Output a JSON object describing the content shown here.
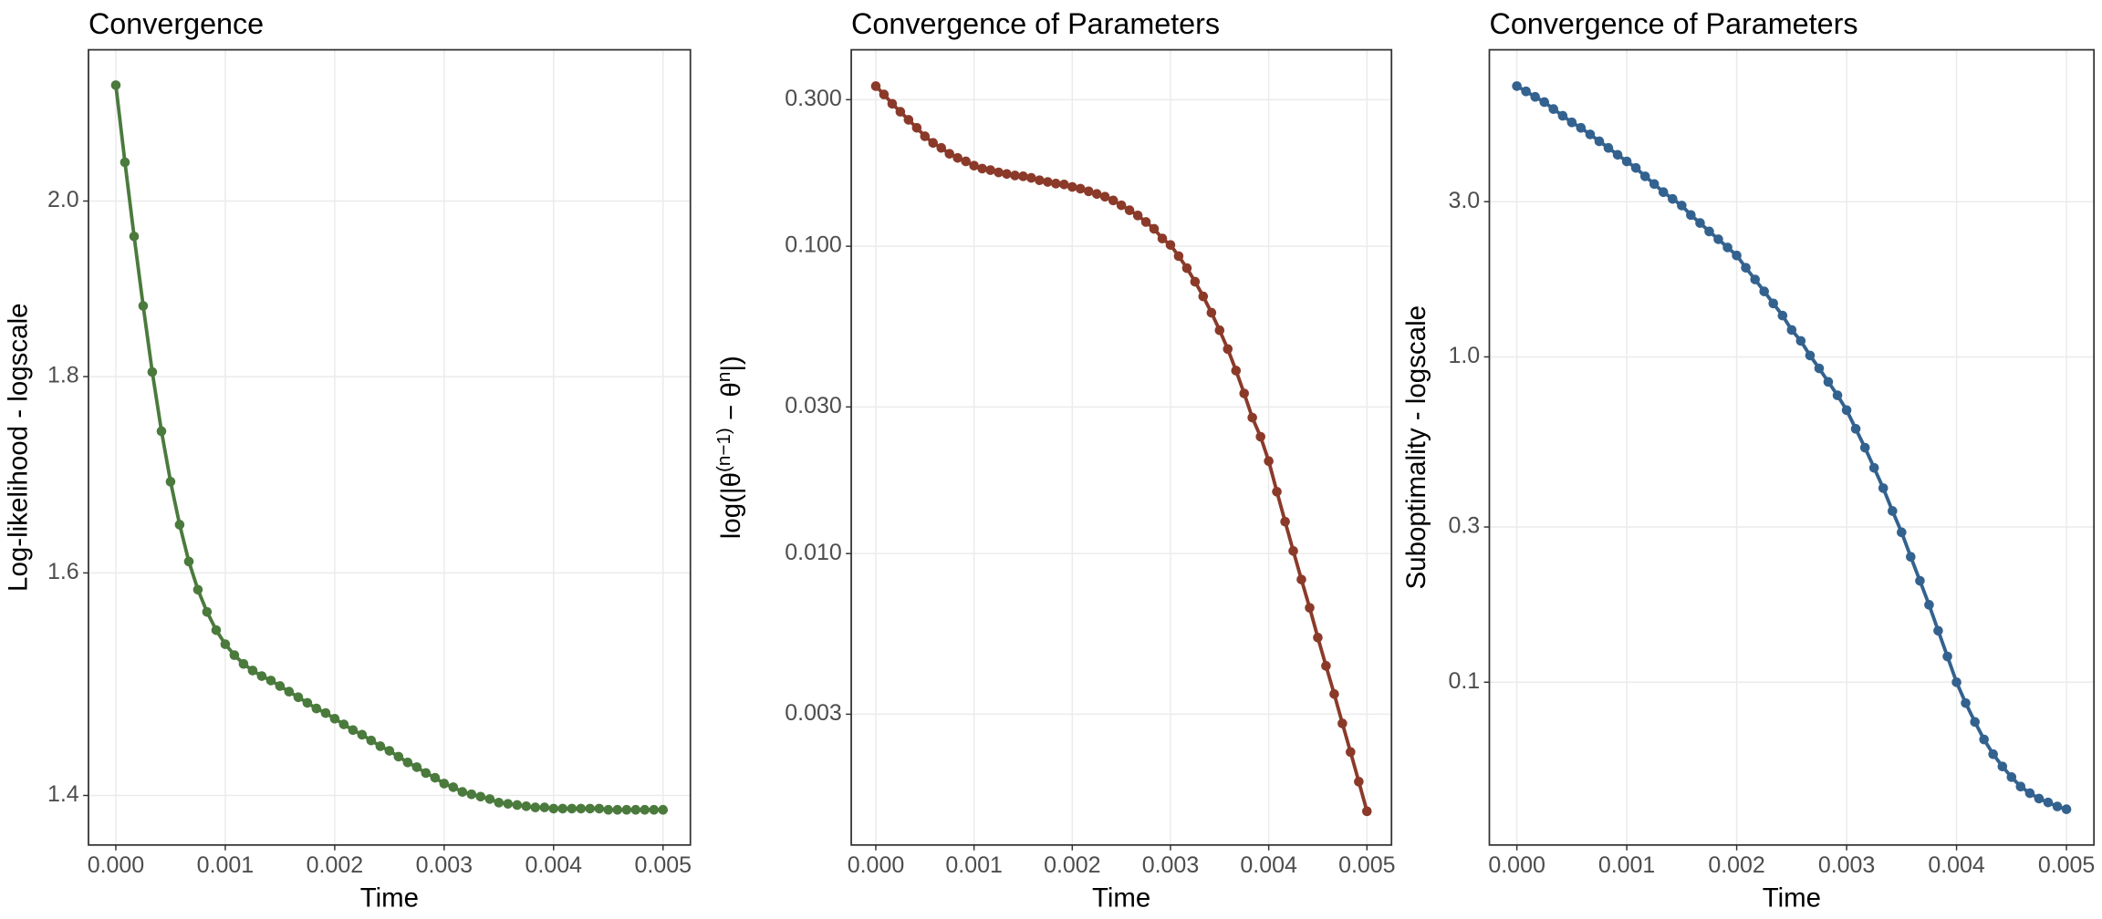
{
  "chart_data": [
    {
      "type": "line",
      "title": "Convergence",
      "xlabel": "Time",
      "ylabel": "Log-likelihood - logscale",
      "color": "#4b7a3d",
      "log_y": true,
      "grid": true,
      "x": [
        0,
        8.33e-05,
        0.000167,
        0.00025,
        0.000333,
        0.000417,
        0.0005,
        0.000583,
        0.000667,
        0.00075,
        0.000833,
        0.000917,
        0.001,
        0.001083,
        0.001167,
        0.00125,
        0.001333,
        0.001417,
        0.0015,
        0.001583,
        0.001667,
        0.00175,
        0.001833,
        0.001917,
        0.002,
        0.002083,
        0.002167,
        0.00225,
        0.002333,
        0.002417,
        0.0025,
        0.002583,
        0.002667,
        0.00275,
        0.002833,
        0.002917,
        0.003,
        0.003083,
        0.003167,
        0.00325,
        0.003333,
        0.003417,
        0.0035,
        0.003583,
        0.003667,
        0.00375,
        0.003833,
        0.003917,
        0.004,
        0.004083,
        0.004167,
        0.00425,
        0.004333,
        0.004417,
        0.0045,
        0.004583,
        0.004667,
        0.00475,
        0.004833,
        0.004917,
        0.005
      ],
      "values": [
        2.144,
        2.047,
        1.958,
        1.878,
        1.805,
        1.742,
        1.69,
        1.647,
        1.611,
        1.584,
        1.563,
        1.546,
        1.533,
        1.523,
        1.515,
        1.509,
        1.504,
        1.5,
        1.495,
        1.49,
        1.485,
        1.48,
        1.475,
        1.471,
        1.466,
        1.461,
        1.456,
        1.452,
        1.447,
        1.442,
        1.438,
        1.433,
        1.428,
        1.424,
        1.419,
        1.415,
        1.41,
        1.407,
        1.403,
        1.401,
        1.399,
        1.397,
        1.394,
        1.393,
        1.392,
        1.391,
        1.39,
        1.39,
        1.389,
        1.389,
        1.389,
        1.389,
        1.389,
        1.389,
        1.388,
        1.388,
        1.388,
        1.388,
        1.388,
        1.388,
        1.388
      ],
      "xlim": [
        -0.00025,
        0.00525
      ],
      "ylim": [
        1.359,
        2.19
      ],
      "xticks": [
        {
          "value": 0,
          "label": "0.000"
        },
        {
          "value": 0.001,
          "label": "0.001"
        },
        {
          "value": 0.002,
          "label": "0.002"
        },
        {
          "value": 0.003,
          "label": "0.003"
        },
        {
          "value": 0.004,
          "label": "0.004"
        },
        {
          "value": 0.005,
          "label": "0.005"
        }
      ],
      "yticks": [
        1.4,
        1.6,
        1.8,
        {
          "value": 2,
          "label": "2.0"
        }
      ]
    },
    {
      "type": "line",
      "title": "Convergence of Parameters",
      "xlabel": "Time",
      "ylabel": [
        "log(|θ",
        "(n−1)",
        " − θ",
        "n",
        "|)"
      ],
      "ylabel_superscript": [
        false,
        true,
        false,
        true,
        false
      ],
      "color": "#8b3a2a",
      "log_y": true,
      "grid": true,
      "x": [
        0,
        8.33e-05,
        0.000167,
        0.00025,
        0.000333,
        0.000417,
        0.0005,
        0.000583,
        0.000667,
        0.00075,
        0.000833,
        0.000917,
        0.001,
        0.001083,
        0.001167,
        0.00125,
        0.001333,
        0.001417,
        0.0015,
        0.001583,
        0.001667,
        0.00175,
        0.001833,
        0.001917,
        0.002,
        0.002083,
        0.002167,
        0.00225,
        0.002333,
        0.002417,
        0.0025,
        0.002583,
        0.002667,
        0.00275,
        0.002833,
        0.002917,
        0.003,
        0.003083,
        0.003167,
        0.00325,
        0.003333,
        0.003417,
        0.0035,
        0.003583,
        0.003667,
        0.00375,
        0.003833,
        0.003917,
        0.004,
        0.004083,
        0.004167,
        0.00425,
        0.004333,
        0.004417,
        0.0045,
        0.004583,
        0.004667,
        0.00475,
        0.004833,
        0.004917,
        0.005
      ],
      "values": [
        0.332,
        0.312,
        0.291,
        0.274,
        0.258,
        0.243,
        0.228,
        0.217,
        0.209,
        0.2,
        0.194,
        0.189,
        0.183,
        0.179,
        0.177,
        0.174,
        0.172,
        0.17,
        0.169,
        0.167,
        0.164,
        0.162,
        0.16,
        0.159,
        0.156,
        0.154,
        0.151,
        0.148,
        0.145,
        0.141,
        0.136,
        0.131,
        0.126,
        0.12,
        0.114,
        0.106,
        0.101,
        0.0929,
        0.0849,
        0.0767,
        0.0687,
        0.0608,
        0.0533,
        0.0463,
        0.0394,
        0.0332,
        0.0277,
        0.024,
        0.02,
        0.0159,
        0.0127,
        0.0102,
        0.00823,
        0.00666,
        0.00533,
        0.00431,
        0.00349,
        0.0028,
        0.00226,
        0.00181,
        0.00145
      ],
      "xlim": [
        -0.00025,
        0.00525
      ],
      "ylim": [
        0.001126,
        0.436
      ],
      "xticks": [
        {
          "value": 0,
          "label": "0.000"
        },
        {
          "value": 0.001,
          "label": "0.001"
        },
        {
          "value": 0.002,
          "label": "0.002"
        },
        {
          "value": 0.003,
          "label": "0.003"
        },
        {
          "value": 0.004,
          "label": "0.004"
        },
        {
          "value": 0.005,
          "label": "0.005"
        }
      ],
      "yticks": [
        {
          "value": 0.003,
          "label": "0.003"
        },
        {
          "value": 0.01,
          "label": "0.010"
        },
        {
          "value": 0.03,
          "label": "0.030"
        },
        {
          "value": 0.1,
          "label": "0.100"
        },
        {
          "value": 0.3,
          "label": "0.300"
        }
      ]
    },
    {
      "type": "line",
      "title": "Convergence of Parameters",
      "xlabel": "Time",
      "ylabel": "Suboptimality - logscale",
      "color": "#33628f",
      "log_y": true,
      "grid": true,
      "x": [
        0,
        8.33e-05,
        0.000167,
        0.00025,
        0.000333,
        0.000417,
        0.0005,
        0.000583,
        0.000667,
        0.00075,
        0.000833,
        0.000917,
        0.001,
        0.001083,
        0.001167,
        0.00125,
        0.001333,
        0.001417,
        0.0015,
        0.001583,
        0.001667,
        0.00175,
        0.001833,
        0.001917,
        0.002,
        0.002083,
        0.002167,
        0.00225,
        0.002333,
        0.002417,
        0.0025,
        0.002583,
        0.002667,
        0.00275,
        0.002833,
        0.002917,
        0.003,
        0.003083,
        0.003167,
        0.00325,
        0.003333,
        0.003417,
        0.0035,
        0.003583,
        0.003667,
        0.00375,
        0.003833,
        0.003917,
        0.004,
        0.004083,
        0.004167,
        0.00425,
        0.004333,
        0.004417,
        0.0045,
        0.004583,
        0.004667,
        0.00475,
        0.004833,
        0.004917,
        0.005
      ],
      "values": [
        6.8,
        6.55,
        6.3,
        6.07,
        5.78,
        5.51,
        5.26,
        5.06,
        4.83,
        4.6,
        4.39,
        4.18,
        3.99,
        3.81,
        3.59,
        3.4,
        3.21,
        3.06,
        2.92,
        2.73,
        2.58,
        2.43,
        2.3,
        2.17,
        2.05,
        1.88,
        1.73,
        1.59,
        1.46,
        1.34,
        1.21,
        1.12,
        1.01,
        0.922,
        0.838,
        0.762,
        0.686,
        0.601,
        0.526,
        0.456,
        0.395,
        0.336,
        0.289,
        0.243,
        0.205,
        0.173,
        0.144,
        0.12,
        0.1,
        0.0863,
        0.0755,
        0.0667,
        0.0601,
        0.0551,
        0.0511,
        0.0478,
        0.0456,
        0.0439,
        0.0427,
        0.0415,
        0.0407
      ],
      "xlim": [
        -0.00025,
        0.00525
      ],
      "ylim": [
        0.0316,
        8.79
      ],
      "xticks": [
        {
          "value": 0,
          "label": "0.000"
        },
        {
          "value": 0.001,
          "label": "0.001"
        },
        {
          "value": 0.002,
          "label": "0.002"
        },
        {
          "value": 0.003,
          "label": "0.003"
        },
        {
          "value": 0.004,
          "label": "0.004"
        },
        {
          "value": 0.005,
          "label": "0.005"
        }
      ],
      "yticks": [
        0.1,
        0.3,
        {
          "value": 1,
          "label": "1.0"
        },
        {
          "value": 3,
          "label": "3.0"
        }
      ]
    }
  ]
}
